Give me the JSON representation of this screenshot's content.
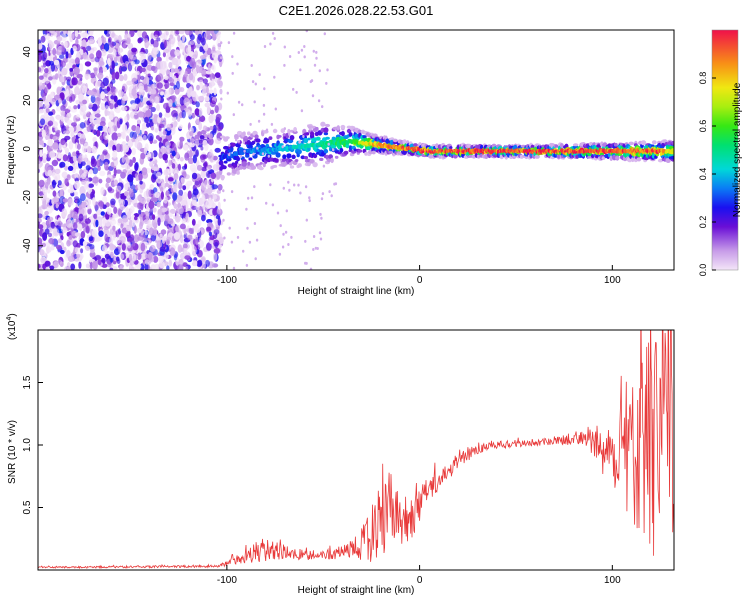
{
  "title": "C2E1.2026.028.22.53.G01",
  "chart_data": [
    {
      "type": "heatmap",
      "xlabel": "Height of straight line (km)",
      "ylabel": "Frequency (Hz)",
      "xlim": [
        -198,
        132
      ],
      "ylim": [
        -50,
        49
      ],
      "xticks": [
        -100,
        0,
        100
      ],
      "yticks": [
        -40,
        -20,
        0,
        20,
        40
      ],
      "noise_region_x": [
        -198,
        -103
      ],
      "ridge": {
        "x": [
          -103,
          -90,
          -70,
          -50,
          -35,
          -25,
          -15,
          -5,
          5,
          20,
          60,
          100,
          125,
          132
        ],
        "f": [
          -4,
          -1,
          0,
          2,
          3,
          2,
          1,
          0,
          -1,
          -1,
          -1,
          -1,
          -1,
          -1
        ],
        "width": [
          14,
          12,
          11,
          12,
          8,
          5,
          4,
          3,
          3,
          3,
          3,
          4,
          5,
          6
        ],
        "peak": [
          0.3,
          0.35,
          0.42,
          0.5,
          0.6,
          0.85,
          0.9,
          0.95,
          0.98,
          1.0,
          1.0,
          1.0,
          0.95,
          0.7
        ]
      }
    },
    {
      "type": "colorbar",
      "label": "Normalized spectral amplitude",
      "range": [
        0,
        1
      ],
      "ticks": [
        "0.0",
        "0.2",
        "0.4",
        "0.6",
        "0.8"
      ]
    },
    {
      "type": "line",
      "xlabel": "Height of straight line (km)",
      "ylabel": "SNR (10 * v/v)",
      "scale_label": "(x10",
      "scale_exponent": "4",
      "xlim": [
        -198,
        132
      ],
      "ylim": [
        0,
        1.92
      ],
      "xticks": [
        -100,
        0,
        100
      ],
      "yticks": [
        "0.5",
        "1.0",
        "1.5"
      ],
      "color": "#e83a3a",
      "envelope": {
        "x": [
          -198,
          -105,
          -100,
          -90,
          -80,
          -70,
          -60,
          -50,
          -40,
          -32,
          -25,
          -20,
          -15,
          -10,
          -5,
          0,
          5,
          10,
          15,
          20,
          30,
          40,
          50,
          60,
          70,
          80,
          86,
          90,
          95,
          100,
          105,
          110,
          115,
          120,
          125,
          130
        ],
        "mean": [
          0.02,
          0.03,
          0.05,
          0.12,
          0.16,
          0.14,
          0.12,
          0.12,
          0.14,
          0.18,
          0.28,
          0.4,
          0.5,
          0.36,
          0.42,
          0.52,
          0.62,
          0.72,
          0.78,
          0.88,
          0.96,
          1.0,
          1.01,
          1.02,
          1.03,
          1.04,
          1.05,
          1.03,
          0.98,
          0.92,
          0.92,
          0.95,
          0.95,
          0.95,
          0.95,
          0.95
        ],
        "noise": [
          0.006,
          0.01,
          0.02,
          0.07,
          0.1,
          0.06,
          0.04,
          0.04,
          0.06,
          0.1,
          0.22,
          0.3,
          0.3,
          0.22,
          0.2,
          0.15,
          0.12,
          0.08,
          0.07,
          0.06,
          0.04,
          0.03,
          0.03,
          0.03,
          0.03,
          0.04,
          0.05,
          0.12,
          0.22,
          0.3,
          0.42,
          0.55,
          0.7,
          0.85,
          0.95,
          0.95
        ]
      }
    }
  ]
}
